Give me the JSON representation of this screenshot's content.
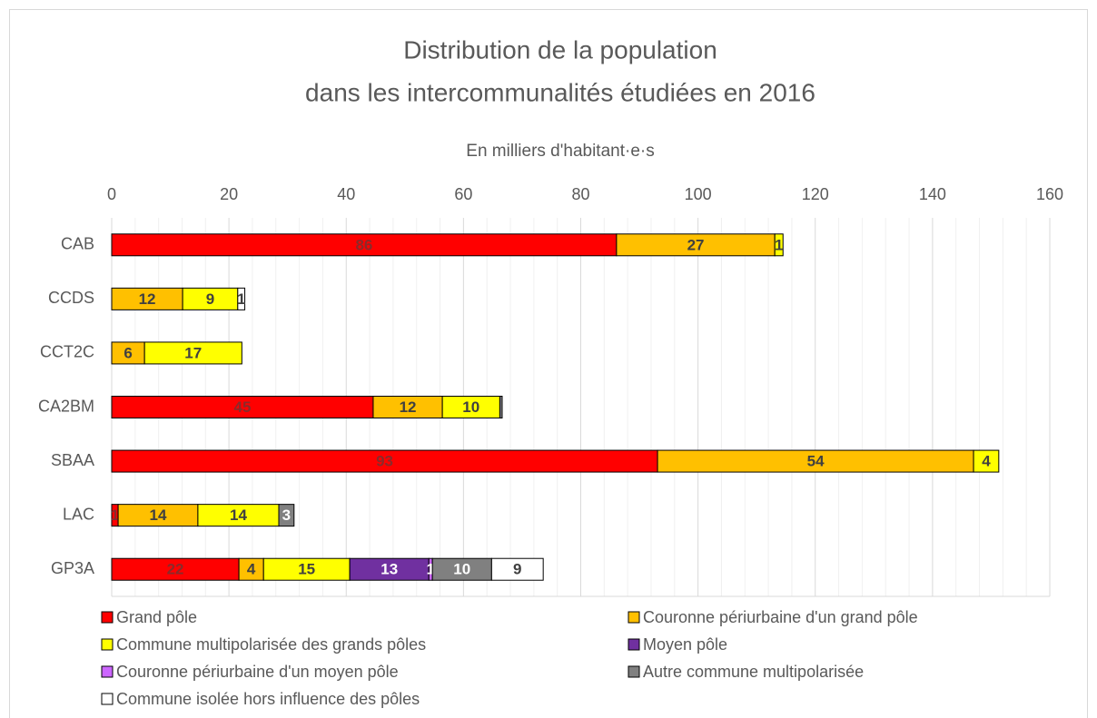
{
  "chart_data": {
    "type": "stacked-bar-horizontal",
    "title": [
      "Distribution de la population",
      "dans les intercommunalités étudiées en 2016"
    ],
    "subtitle": "En milliers d'habitant·e·s",
    "categories": [
      "CAB",
      "CCDS",
      "CCT2C",
      "CA2BM",
      "SBAA",
      "LAC",
      "GP3A"
    ],
    "series": [
      {
        "name": "Grand pôle",
        "color": "#ff0000",
        "label_color": "#8b2a2a",
        "values": [
          86.1,
          null,
          null,
          44.6,
          93.1,
          1.1,
          21.7
        ],
        "value_labels": [
          "86",
          null,
          null,
          "45",
          "93",
          "1",
          "22"
        ]
      },
      {
        "name": "Couronne périurbaine d'un grand pôle",
        "color": "#ffc000",
        "label_color": "#404040",
        "values": [
          27,
          12.1,
          5.6,
          11.8,
          53.9,
          13.6,
          4.2
        ],
        "value_labels": [
          "27",
          "12",
          "6",
          "12",
          "54",
          "14",
          "4"
        ]
      },
      {
        "name": "Commune multipolarisée des grands pôles",
        "color": "#ffff00",
        "label_color": "#404040",
        "values": [
          1.4,
          9.4,
          16.6,
          9.8,
          4.3,
          13.8,
          14.7
        ],
        "value_labels": [
          "1",
          "9",
          "17",
          "10",
          "4",
          "14",
          "15"
        ]
      },
      {
        "name": "Moyen pôle",
        "color": "#7030a0",
        "label_color": "#ffffff",
        "values": [
          null,
          null,
          null,
          null,
          null,
          null,
          13.5
        ],
        "value_labels": [
          null,
          null,
          null,
          null,
          null,
          null,
          "13"
        ]
      },
      {
        "name": "Couronne périurbaine d'un moyen pôle",
        "color": "#cc66ff",
        "label_color": "#ffffff",
        "values": [
          null,
          null,
          null,
          null,
          null,
          null,
          0.6
        ],
        "value_labels": [
          null,
          null,
          null,
          null,
          null,
          null,
          "1"
        ]
      },
      {
        "name": "Autre commune multipolarisée",
        "color": "#808080",
        "label_color": "#ffffff",
        "values": [
          null,
          null,
          null,
          0.4,
          null,
          2.6,
          10.1
        ],
        "value_labels": [
          null,
          null,
          null,
          null,
          null,
          "3",
          "10"
        ]
      },
      {
        "name": "Commune isolée hors influence des pôles",
        "color": "#ffffff",
        "label_color": "#404040",
        "values": [
          null,
          1.2,
          null,
          null,
          null,
          null,
          8.8
        ],
        "value_labels": [
          null,
          "1",
          null,
          null,
          null,
          null,
          "9"
        ]
      }
    ],
    "xlim": [
      0,
      160
    ],
    "xticks": [
      0,
      20,
      40,
      60,
      80,
      100,
      120,
      140,
      160
    ],
    "grid": true,
    "legend": "bottom"
  }
}
